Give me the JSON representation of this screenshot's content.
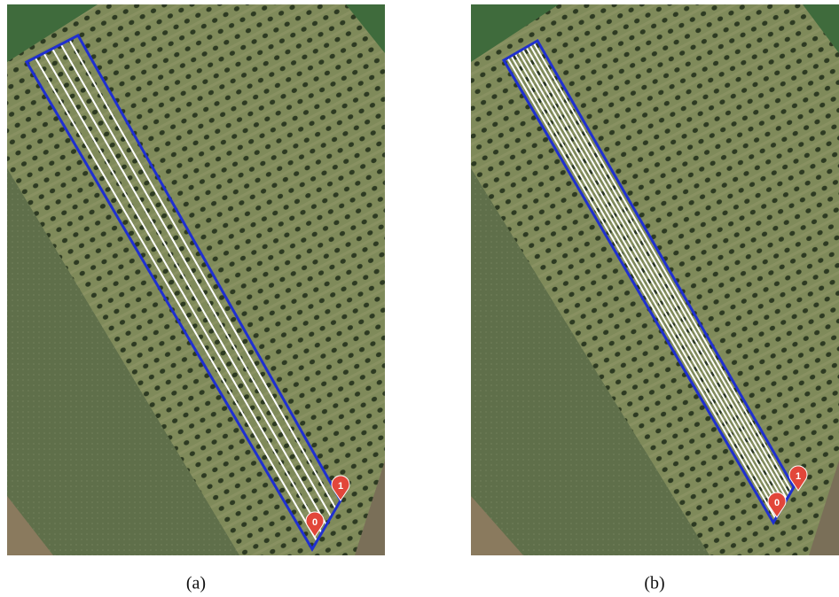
{
  "panels": [
    {
      "markers": [
        "0",
        "1"
      ],
      "caption": "(a)"
    },
    {
      "markers": [
        "0",
        "1"
      ],
      "caption": "(b)"
    }
  ]
}
